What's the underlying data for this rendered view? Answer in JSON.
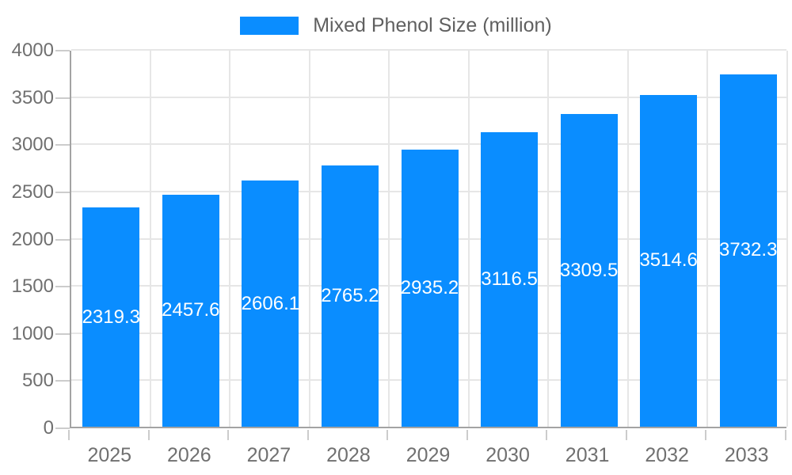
{
  "chart_data": {
    "type": "bar",
    "title": "",
    "categories": [
      "2025",
      "2026",
      "2027",
      "2028",
      "2029",
      "2030",
      "2031",
      "2032",
      "2033"
    ],
    "series": [
      {
        "name": "Mixed Phenol Size (million)",
        "values": [
          2319.3,
          2457.6,
          2606.1,
          2765.2,
          2935.2,
          3116.5,
          3309.5,
          3514.6,
          3732.3
        ]
      }
    ],
    "value_labels": [
      "2319.3",
      "2457.6",
      "2606.1",
      "2765.2",
      "2935.2",
      "3116.5",
      "3309.5",
      "3514.6",
      "3732.3"
    ],
    "xlabel": "",
    "ylabel": "",
    "ylim": [
      0,
      4000
    ],
    "yticks": [
      0,
      500,
      1000,
      1500,
      2000,
      2500,
      3000,
      3500,
      4000
    ],
    "grid": true,
    "legend_position": "top"
  },
  "legend": {
    "label": "Mixed Phenol Size (million)"
  },
  "colors": {
    "bar": "#0a8dff",
    "value_label": "#ffffff",
    "axis_line": "#a3a3a3",
    "gridline": "#e6e6e6",
    "tick_mark": "#cccccc",
    "tick_label": "#707070",
    "legend_text": "#606060",
    "background": "#ffffff"
  }
}
